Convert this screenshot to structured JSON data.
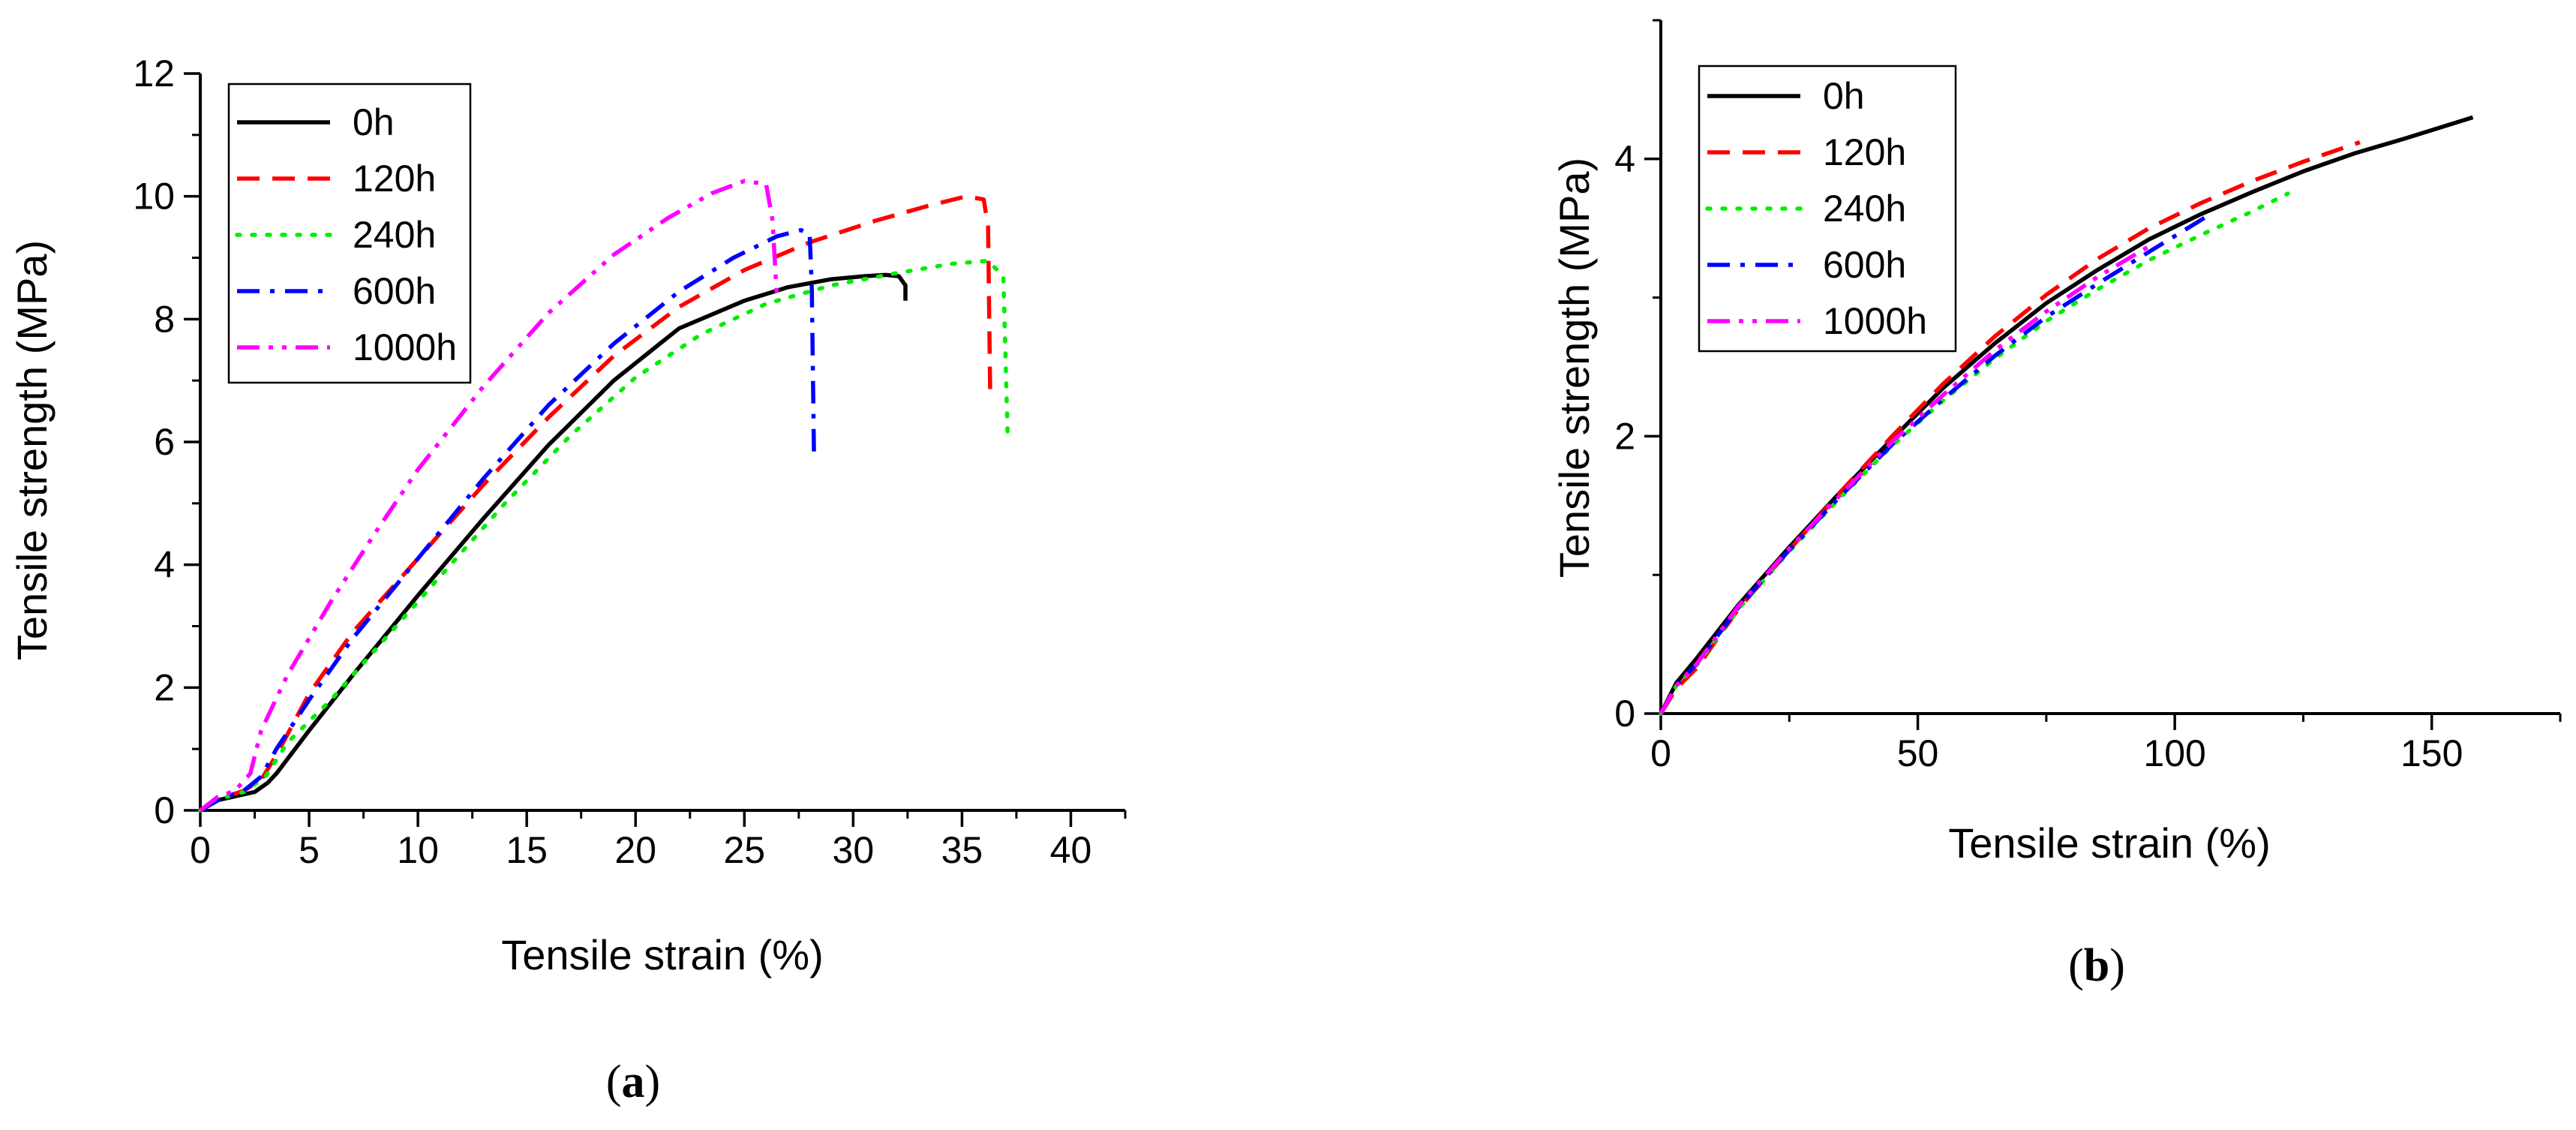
{
  "chart_data": [
    {
      "type": "line",
      "panel_label": {
        "open": "(",
        "letter": "a",
        "close": ")"
      },
      "xlabel": "Tensile strain (%)",
      "ylabel": "Tensile strength (MPa)",
      "xlim": [
        0,
        42.5
      ],
      "ylim": [
        0,
        12
      ],
      "xticks": [
        0,
        5,
        10,
        15,
        20,
        25,
        30,
        35,
        40
      ],
      "yticks": [
        0,
        2,
        4,
        6,
        8,
        10,
        12
      ],
      "legend": "top-left",
      "series": [
        {
          "name": "0h",
          "color": "#000000",
          "style": "solid",
          "x": [
            0,
            0.6,
            1.5,
            2.5,
            3.1,
            3.5,
            5,
            7,
            10,
            13,
            16,
            19,
            22,
            25,
            27,
            29,
            30.5,
            31.5,
            32.1,
            32.4,
            32.4
          ],
          "y": [
            0,
            0.15,
            0.22,
            0.3,
            0.45,
            0.6,
            1.3,
            2.2,
            3.5,
            4.75,
            5.95,
            7.0,
            7.85,
            8.3,
            8.52,
            8.65,
            8.7,
            8.72,
            8.7,
            8.55,
            8.3
          ]
        },
        {
          "name": "120h",
          "color": "#ff0000",
          "style": "dashed",
          "x": [
            0,
            1,
            2,
            2.8,
            3.5,
            5,
            7,
            10,
            13,
            16,
            19,
            22,
            25,
            28,
            31,
            33.5,
            35.2,
            36.0,
            36.2,
            36.3
          ],
          "y": [
            0,
            0.2,
            0.32,
            0.5,
            0.9,
            1.9,
            2.9,
            4.1,
            5.3,
            6.4,
            7.4,
            8.2,
            8.8,
            9.25,
            9.6,
            9.85,
            10.0,
            9.95,
            9.5,
            6.7
          ]
        },
        {
          "name": "240h",
          "color": "#00ee00",
          "style": "dotted",
          "x": [
            0,
            1,
            2,
            3,
            4,
            6,
            8,
            11,
            14,
            17,
            20,
            23,
            26,
            29,
            32,
            34.5,
            36.2,
            36.9,
            37.1
          ],
          "y": [
            0,
            0.2,
            0.3,
            0.55,
            1.1,
            1.8,
            2.6,
            3.8,
            5.0,
            6.1,
            7.05,
            7.75,
            8.25,
            8.55,
            8.75,
            8.9,
            8.95,
            8.7,
            6.1
          ]
        },
        {
          "name": "600h",
          "color": "#0000ff",
          "style": "dashdot",
          "x": [
            0,
            1,
            2,
            2.8,
            3.5,
            5,
            7,
            10,
            13,
            16,
            19,
            22,
            24.5,
            26.5,
            27.6,
            28.0,
            28.1,
            28.2
          ],
          "y": [
            0,
            0.2,
            0.32,
            0.55,
            1.0,
            1.8,
            2.8,
            4.1,
            5.4,
            6.6,
            7.6,
            8.45,
            9.0,
            9.35,
            9.45,
            9.4,
            8.5,
            5.8
          ]
        },
        {
          "name": "1000h",
          "color": "#ff00ff",
          "style": "dashdotdot",
          "x": [
            0,
            0.8,
            1.6,
            2.3,
            2.8,
            4,
            6,
            8,
            10,
            13,
            16,
            19,
            21.5,
            23.5,
            25,
            26,
            26.3,
            26.5
          ],
          "y": [
            0,
            0.22,
            0.32,
            0.6,
            1.3,
            2.2,
            3.4,
            4.5,
            5.55,
            6.9,
            8.1,
            9.05,
            9.65,
            10.05,
            10.25,
            10.2,
            9.6,
            8.3
          ]
        }
      ]
    },
    {
      "type": "line",
      "panel_label": {
        "open": "(",
        "letter": "b",
        "close": ")"
      },
      "xlabel": "Tensile strain (%)",
      "ylabel": "Tensile strength (MPa)",
      "xlim": [
        0,
        175
      ],
      "ylim": [
        0,
        5
      ],
      "xticks": [
        0,
        50,
        100,
        150
      ],
      "yticks": [
        0,
        2,
        4
      ],
      "legend": "top-left",
      "series": [
        {
          "name": "0h",
          "color": "#000000",
          "style": "solid",
          "x": [
            0,
            3,
            7,
            15,
            25,
            35,
            45,
            55,
            65,
            75,
            85,
            95,
            105,
            115,
            125,
            135,
            145,
            158
          ],
          "y": [
            0,
            0.22,
            0.4,
            0.78,
            1.2,
            1.6,
            1.98,
            2.35,
            2.67,
            2.96,
            3.2,
            3.42,
            3.6,
            3.76,
            3.91,
            4.04,
            4.15,
            4.3
          ]
        },
        {
          "name": "120h",
          "color": "#ff0000",
          "style": "dashed",
          "x": [
            0,
            3,
            7,
            15,
            25,
            35,
            45,
            55,
            65,
            75,
            85,
            95,
            105,
            115,
            125,
            136
          ],
          "y": [
            0,
            0.18,
            0.33,
            0.75,
            1.18,
            1.6,
            2.0,
            2.38,
            2.72,
            3.02,
            3.28,
            3.5,
            3.68,
            3.84,
            3.98,
            4.12
          ]
        },
        {
          "name": "240h",
          "color": "#00ee00",
          "style": "dotted",
          "x": [
            0,
            3,
            7,
            15,
            25,
            35,
            45,
            55,
            65,
            75,
            85,
            95,
            105,
            115,
            122
          ],
          "y": [
            0,
            0.2,
            0.35,
            0.75,
            1.17,
            1.56,
            1.93,
            2.26,
            2.56,
            2.83,
            3.06,
            3.27,
            3.45,
            3.62,
            3.75
          ]
        },
        {
          "name": "600h",
          "color": "#0000ff",
          "style": "dashdot",
          "x": [
            0,
            3,
            7,
            15,
            25,
            35,
            45,
            55,
            65,
            75,
            85,
            95,
            106
          ],
          "y": [
            0,
            0.2,
            0.36,
            0.76,
            1.18,
            1.57,
            1.94,
            2.27,
            2.58,
            2.86,
            3.1,
            3.33,
            3.58
          ]
        },
        {
          "name": "1000h",
          "color": "#ff00ff",
          "style": "dashdotdot",
          "x": [
            0,
            3,
            7,
            15,
            25,
            35,
            45,
            55,
            65,
            75,
            85,
            95
          ],
          "y": [
            0,
            0.2,
            0.36,
            0.77,
            1.19,
            1.58,
            1.96,
            2.3,
            2.62,
            2.9,
            3.15,
            3.37
          ]
        }
      ]
    }
  ]
}
